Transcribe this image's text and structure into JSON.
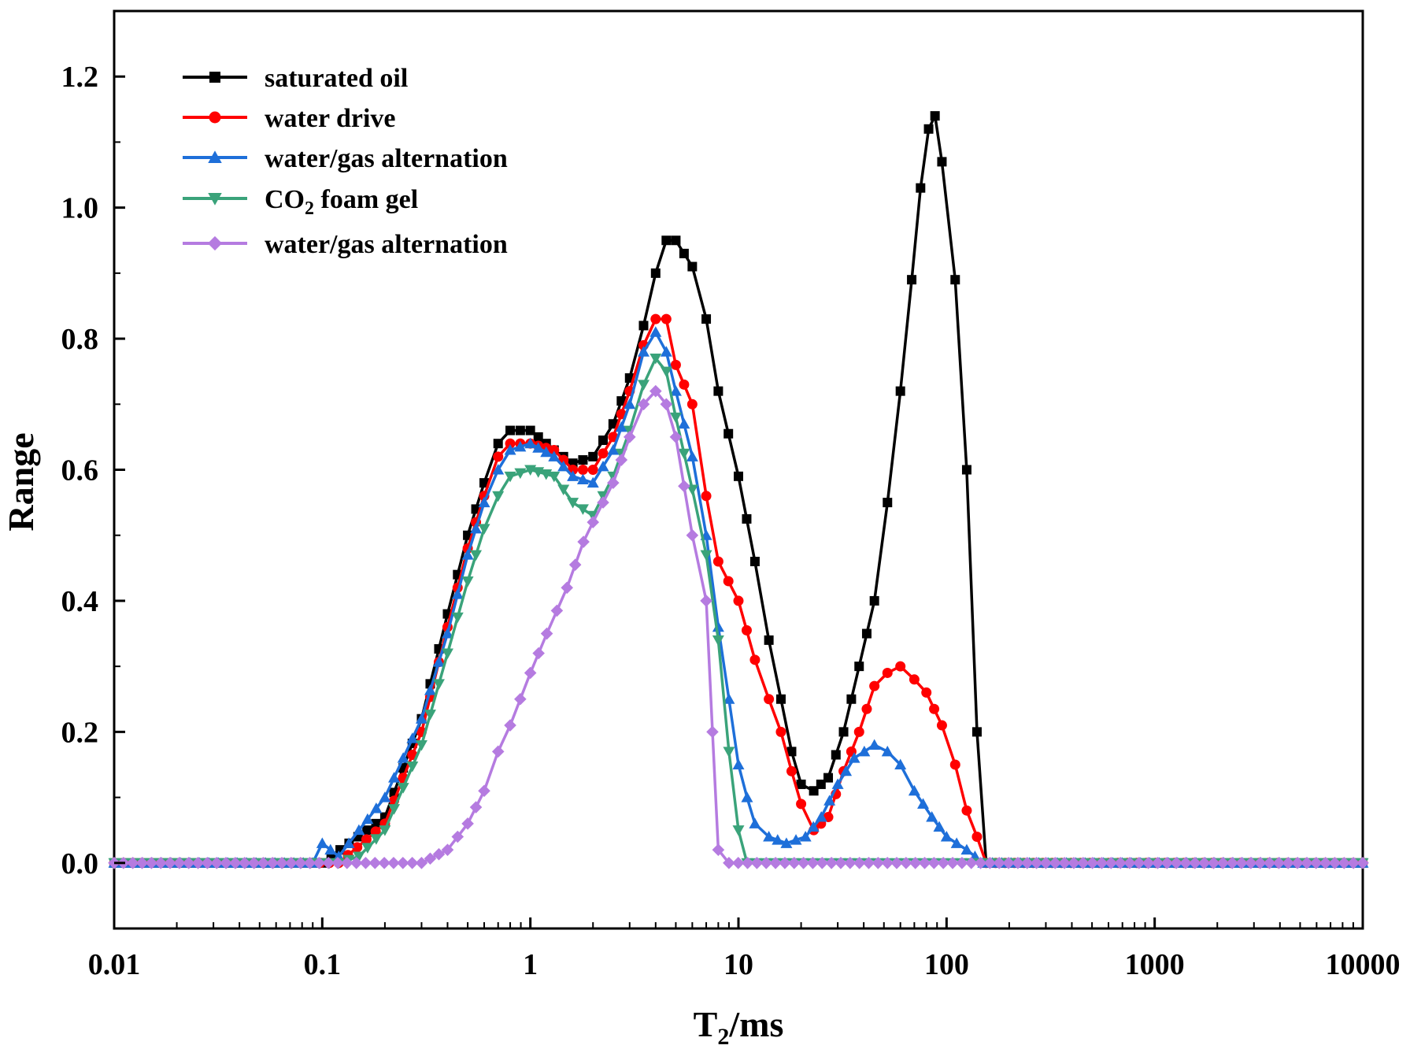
{
  "chart_data": {
    "type": "line",
    "title": "",
    "xlabel": "T2/ms",
    "ylabel": "Range",
    "x_scale": "log",
    "xlim": [
      0.01,
      10000
    ],
    "ylim": [
      -0.1,
      1.3
    ],
    "x_ticks": [
      0.01,
      0.1,
      1,
      10,
      100,
      1000,
      10000
    ],
    "x_tick_labels": [
      "0.01",
      "0.1",
      "1",
      "10",
      "100",
      "1000",
      "10000"
    ],
    "y_ticks": [
      0.0,
      0.2,
      0.4,
      0.6,
      0.8,
      1.0,
      1.2
    ],
    "y_tick_labels": [
      "0.0",
      "0.2",
      "0.4",
      "0.6",
      "0.8",
      "1.0",
      "1.2"
    ],
    "legend_position": "top-left",
    "series": [
      {
        "name": "saturated oil",
        "legend_label": {
          "main": "saturated oil"
        },
        "color": "#000000",
        "marker": "square",
        "points": [
          [
            0.01,
            0
          ],
          [
            0.1,
            0
          ],
          [
            0.2,
            0.07
          ],
          [
            0.3,
            0.22
          ],
          [
            0.4,
            0.38
          ],
          [
            0.5,
            0.5
          ],
          [
            0.6,
            0.58
          ],
          [
            0.7,
            0.64
          ],
          [
            0.8,
            0.66
          ],
          [
            1.0,
            0.66
          ],
          [
            1.3,
            0.63
          ],
          [
            1.6,
            0.61
          ],
          [
            2.0,
            0.62
          ],
          [
            2.5,
            0.67
          ],
          [
            3.0,
            0.74
          ],
          [
            3.5,
            0.82
          ],
          [
            4.0,
            0.9
          ],
          [
            4.5,
            0.95
          ],
          [
            5.0,
            0.95
          ],
          [
            6.0,
            0.91
          ],
          [
            7.0,
            0.83
          ],
          [
            8.0,
            0.72
          ],
          [
            10.0,
            0.59
          ],
          [
            12.0,
            0.46
          ],
          [
            14.0,
            0.34
          ],
          [
            16.0,
            0.25
          ],
          [
            18.0,
            0.17
          ],
          [
            20.0,
            0.12
          ],
          [
            23.0,
            0.11
          ],
          [
            27.0,
            0.13
          ],
          [
            32.0,
            0.2
          ],
          [
            38.0,
            0.3
          ],
          [
            45.0,
            0.4
          ],
          [
            52.0,
            0.55
          ],
          [
            60.0,
            0.72
          ],
          [
            68.0,
            0.89
          ],
          [
            75.0,
            1.03
          ],
          [
            82.0,
            1.12
          ],
          [
            88.0,
            1.14
          ],
          [
            95.0,
            1.07
          ],
          [
            110.0,
            0.89
          ],
          [
            125.0,
            0.6
          ],
          [
            140.0,
            0.2
          ],
          [
            155.0,
            0.0
          ],
          [
            10000,
            0
          ]
        ]
      },
      {
        "name": "water drive",
        "legend_label": {
          "main": "water drive"
        },
        "color": "#ff0000",
        "marker": "circle",
        "points": [
          [
            0.01,
            0
          ],
          [
            0.12,
            0
          ],
          [
            0.2,
            0.06
          ],
          [
            0.3,
            0.2
          ],
          [
            0.4,
            0.36
          ],
          [
            0.5,
            0.48
          ],
          [
            0.6,
            0.56
          ],
          [
            0.7,
            0.62
          ],
          [
            0.8,
            0.64
          ],
          [
            1.0,
            0.64
          ],
          [
            1.3,
            0.63
          ],
          [
            1.6,
            0.6
          ],
          [
            2.0,
            0.6
          ],
          [
            2.5,
            0.65
          ],
          [
            3.0,
            0.72
          ],
          [
            3.5,
            0.79
          ],
          [
            4.0,
            0.83
          ],
          [
            4.5,
            0.83
          ],
          [
            5.0,
            0.76
          ],
          [
            6.0,
            0.7
          ],
          [
            7.0,
            0.56
          ],
          [
            8.0,
            0.46
          ],
          [
            10.0,
            0.4
          ],
          [
            12.0,
            0.31
          ],
          [
            14.0,
            0.25
          ],
          [
            16.0,
            0.2
          ],
          [
            18.0,
            0.14
          ],
          [
            20.0,
            0.09
          ],
          [
            23.0,
            0.05
          ],
          [
            27.0,
            0.07
          ],
          [
            32.0,
            0.14
          ],
          [
            38.0,
            0.2
          ],
          [
            45.0,
            0.27
          ],
          [
            52.0,
            0.29
          ],
          [
            60.0,
            0.3
          ],
          [
            70.0,
            0.28
          ],
          [
            80.0,
            0.26
          ],
          [
            95.0,
            0.21
          ],
          [
            110.0,
            0.15
          ],
          [
            125.0,
            0.08
          ],
          [
            140.0,
            0.04
          ],
          [
            155.0,
            0.0
          ],
          [
            10000,
            0
          ]
        ]
      },
      {
        "name": "water/gas alternation",
        "legend_label": {
          "main": "water/gas alternation"
        },
        "color": "#1e6fd9",
        "marker": "triangle-up",
        "points": [
          [
            0.01,
            0
          ],
          [
            0.09,
            0
          ],
          [
            0.1,
            0.03
          ],
          [
            0.12,
            0.01
          ],
          [
            0.15,
            0.05
          ],
          [
            0.2,
            0.1
          ],
          [
            0.3,
            0.22
          ],
          [
            0.4,
            0.35
          ],
          [
            0.5,
            0.47
          ],
          [
            0.6,
            0.55
          ],
          [
            0.7,
            0.6
          ],
          [
            0.8,
            0.63
          ],
          [
            1.0,
            0.64
          ],
          [
            1.3,
            0.62
          ],
          [
            1.6,
            0.59
          ],
          [
            2.0,
            0.58
          ],
          [
            2.5,
            0.63
          ],
          [
            3.0,
            0.7
          ],
          [
            3.5,
            0.78
          ],
          [
            4.0,
            0.81
          ],
          [
            4.5,
            0.78
          ],
          [
            5.0,
            0.72
          ],
          [
            6.0,
            0.62
          ],
          [
            7.0,
            0.5
          ],
          [
            8.0,
            0.36
          ],
          [
            9.0,
            0.25
          ],
          [
            10.0,
            0.15
          ],
          [
            11.0,
            0.1
          ],
          [
            12.0,
            0.06
          ],
          [
            14.0,
            0.04
          ],
          [
            17.0,
            0.03
          ],
          [
            21.0,
            0.04
          ],
          [
            25.0,
            0.07
          ],
          [
            30.0,
            0.12
          ],
          [
            36.0,
            0.16
          ],
          [
            45.0,
            0.18
          ],
          [
            52.0,
            0.17
          ],
          [
            60.0,
            0.15
          ],
          [
            70.0,
            0.11
          ],
          [
            85.0,
            0.07
          ],
          [
            100.0,
            0.04
          ],
          [
            125.0,
            0.02
          ],
          [
            150.0,
            0.0
          ],
          [
            10000,
            0
          ]
        ]
      },
      {
        "name": "CO2 foam gel",
        "legend_label": {
          "main": "CO",
          "sub": "2",
          "rest": " foam gel"
        },
        "color": "#3aa37a",
        "marker": "triangle-down",
        "points": [
          [
            0.01,
            0
          ],
          [
            0.12,
            0
          ],
          [
            0.15,
            0.01
          ],
          [
            0.2,
            0.05
          ],
          [
            0.3,
            0.18
          ],
          [
            0.4,
            0.32
          ],
          [
            0.5,
            0.43
          ],
          [
            0.6,
            0.51
          ],
          [
            0.7,
            0.56
          ],
          [
            0.8,
            0.59
          ],
          [
            1.0,
            0.6
          ],
          [
            1.3,
            0.59
          ],
          [
            1.6,
            0.55
          ],
          [
            2.0,
            0.53
          ],
          [
            2.5,
            0.59
          ],
          [
            3.0,
            0.66
          ],
          [
            3.5,
            0.73
          ],
          [
            4.0,
            0.77
          ],
          [
            4.5,
            0.75
          ],
          [
            5.0,
            0.68
          ],
          [
            6.0,
            0.57
          ],
          [
            7.0,
            0.47
          ],
          [
            8.0,
            0.34
          ],
          [
            9.0,
            0.17
          ],
          [
            10.0,
            0.05
          ],
          [
            11.0,
            0.0
          ],
          [
            10000,
            0
          ]
        ]
      },
      {
        "name": "water/gas alternation",
        "legend_label": {
          "main": "water/gas alternation"
        },
        "color": "#b57be0",
        "marker": "diamond",
        "points": [
          [
            0.01,
            0
          ],
          [
            0.3,
            0
          ],
          [
            0.4,
            0.02
          ],
          [
            0.5,
            0.06
          ],
          [
            0.6,
            0.11
          ],
          [
            0.7,
            0.17
          ],
          [
            0.8,
            0.21
          ],
          [
            1.0,
            0.29
          ],
          [
            1.2,
            0.35
          ],
          [
            1.5,
            0.42
          ],
          [
            1.8,
            0.49
          ],
          [
            2.0,
            0.52
          ],
          [
            2.5,
            0.58
          ],
          [
            3.0,
            0.65
          ],
          [
            3.5,
            0.7
          ],
          [
            4.0,
            0.72
          ],
          [
            4.5,
            0.7
          ],
          [
            5.0,
            0.65
          ],
          [
            6.0,
            0.5
          ],
          [
            7.0,
            0.4
          ],
          [
            7.5,
            0.2
          ],
          [
            8.0,
            0.02
          ],
          [
            9.0,
            0.0
          ],
          [
            10000,
            0
          ]
        ]
      }
    ]
  }
}
